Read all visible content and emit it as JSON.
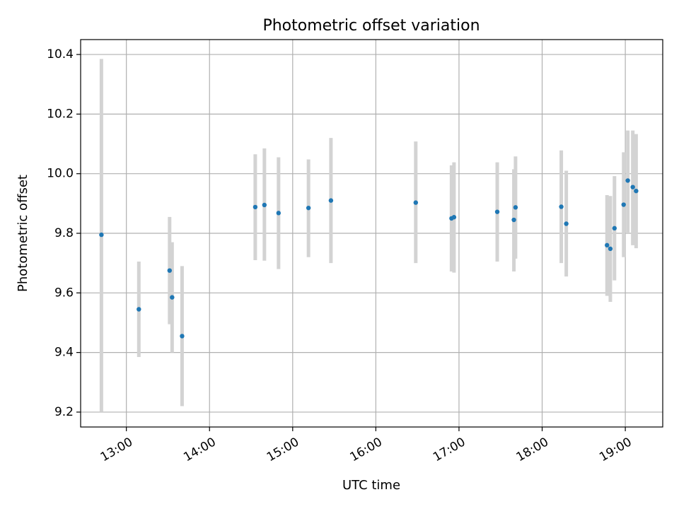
{
  "chart_data": {
    "type": "scatter",
    "title": "Photometric offset variation",
    "xlabel": "UTC time",
    "ylabel": "Photometric offset",
    "x_unit": "hours UTC",
    "xlim": [
      12.45,
      19.45
    ],
    "ylim": [
      9.15,
      10.45
    ],
    "grid": true,
    "legend": "none",
    "colors": {
      "point": "#1f77b4",
      "errorbar": "#d3d3d3"
    },
    "x_ticks": [
      {
        "value": 13,
        "label": "13:00"
      },
      {
        "value": 14,
        "label": "14:00"
      },
      {
        "value": 15,
        "label": "15:00"
      },
      {
        "value": 16,
        "label": "16:00"
      },
      {
        "value": 17,
        "label": "17:00"
      },
      {
        "value": 18,
        "label": "18:00"
      },
      {
        "value": 19,
        "label": "19:00"
      }
    ],
    "y_ticks": [
      {
        "value": 9.2,
        "label": "9.2"
      },
      {
        "value": 9.4,
        "label": "9.4"
      },
      {
        "value": 9.6,
        "label": "9.6"
      },
      {
        "value": 9.8,
        "label": "9.8"
      },
      {
        "value": 10.0,
        "label": "10.0"
      },
      {
        "value": 10.2,
        "label": "10.2"
      },
      {
        "value": 10.4,
        "label": "10.4"
      }
    ],
    "points": [
      {
        "x": 12.7,
        "y": 9.795,
        "low": 9.2,
        "high": 10.385
      },
      {
        "x": 13.15,
        "y": 9.545,
        "low": 9.385,
        "high": 9.705
      },
      {
        "x": 13.52,
        "y": 9.675,
        "low": 9.495,
        "high": 9.855
      },
      {
        "x": 13.55,
        "y": 9.585,
        "low": 9.4,
        "high": 9.77
      },
      {
        "x": 13.67,
        "y": 9.455,
        "low": 9.22,
        "high": 9.69
      },
      {
        "x": 14.55,
        "y": 9.888,
        "low": 9.71,
        "high": 10.065
      },
      {
        "x": 14.66,
        "y": 9.895,
        "low": 9.708,
        "high": 10.085
      },
      {
        "x": 14.83,
        "y": 9.868,
        "low": 9.68,
        "high": 10.055
      },
      {
        "x": 15.19,
        "y": 9.885,
        "low": 9.72,
        "high": 10.048
      },
      {
        "x": 15.46,
        "y": 9.91,
        "low": 9.7,
        "high": 10.12
      },
      {
        "x": 16.48,
        "y": 9.903,
        "low": 9.7,
        "high": 10.108
      },
      {
        "x": 16.91,
        "y": 9.85,
        "low": 9.672,
        "high": 10.028
      },
      {
        "x": 16.94,
        "y": 9.854,
        "low": 9.668,
        "high": 10.038
      },
      {
        "x": 17.46,
        "y": 9.872,
        "low": 9.705,
        "high": 10.038
      },
      {
        "x": 17.66,
        "y": 9.845,
        "low": 9.672,
        "high": 10.015
      },
      {
        "x": 17.68,
        "y": 9.887,
        "low": 9.715,
        "high": 10.058
      },
      {
        "x": 18.23,
        "y": 9.889,
        "low": 9.7,
        "high": 10.078
      },
      {
        "x": 18.29,
        "y": 9.832,
        "low": 9.655,
        "high": 10.01
      },
      {
        "x": 18.78,
        "y": 9.76,
        "low": 9.59,
        "high": 9.928
      },
      {
        "x": 18.82,
        "y": 9.748,
        "low": 9.57,
        "high": 9.925
      },
      {
        "x": 18.87,
        "y": 9.817,
        "low": 9.642,
        "high": 9.992
      },
      {
        "x": 18.98,
        "y": 9.896,
        "low": 9.72,
        "high": 10.072
      },
      {
        "x": 19.03,
        "y": 9.977,
        "low": 9.8,
        "high": 10.145
      },
      {
        "x": 19.09,
        "y": 9.955,
        "low": 9.76,
        "high": 10.145
      },
      {
        "x": 19.13,
        "y": 9.942,
        "low": 9.75,
        "high": 10.133
      }
    ]
  }
}
